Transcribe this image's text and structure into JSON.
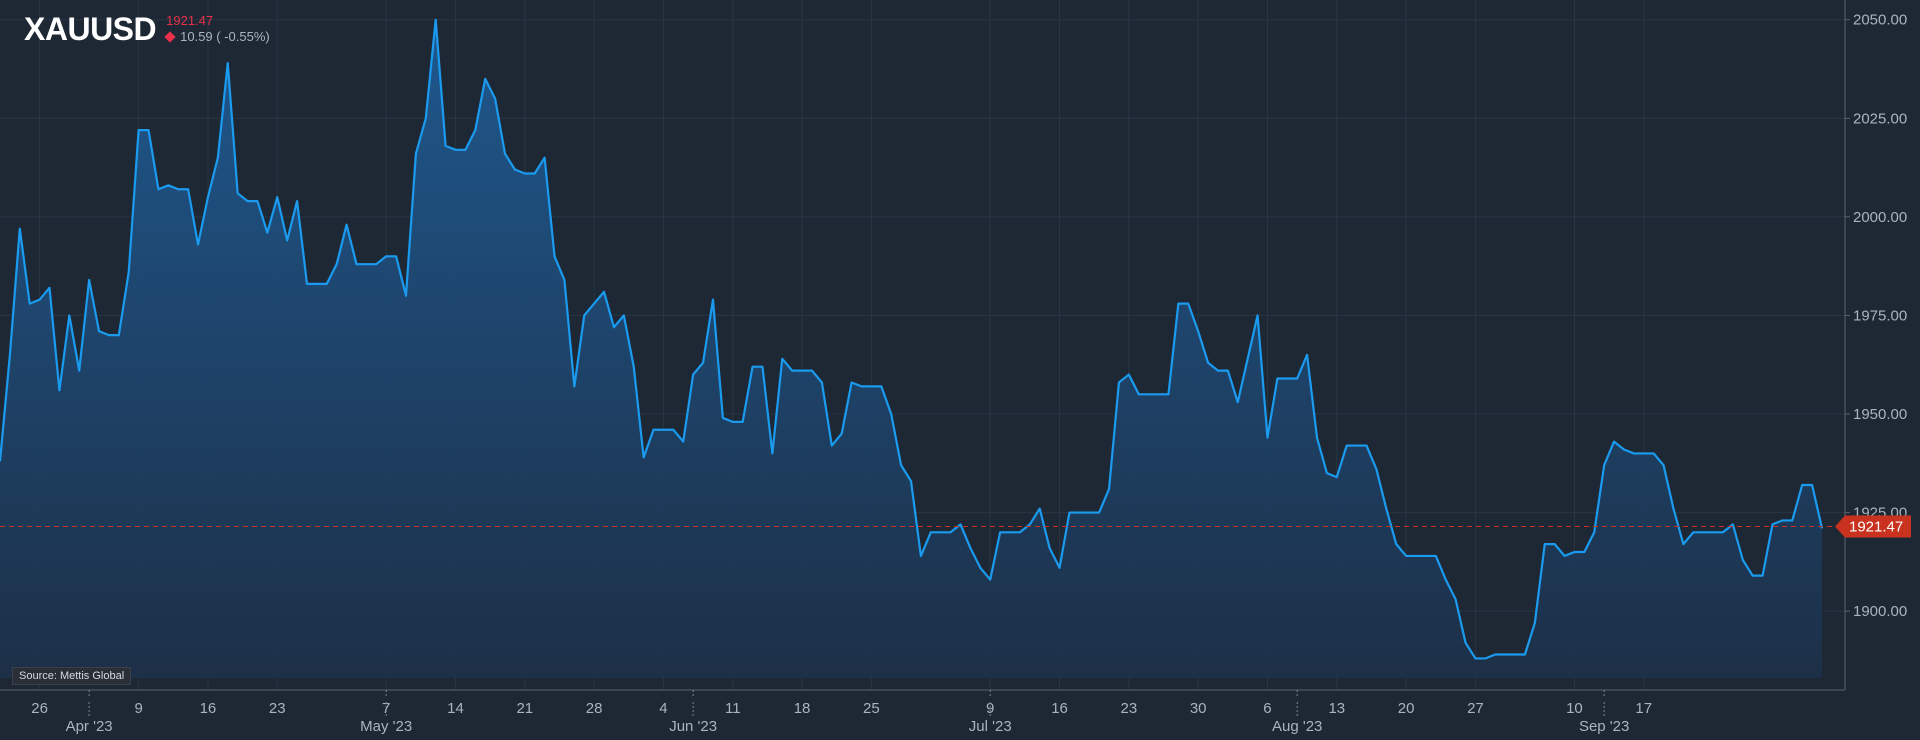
{
  "header": {
    "symbol": "XAUUSD",
    "last_price": "1921.47",
    "change": "10.59 ( -0.55%)"
  },
  "source": "Source: Mettis Global",
  "colors": {
    "background": "#1e2834",
    "line": "#1a9bf0",
    "area_top": "#1e5a92",
    "area_bottom": "#1d3048",
    "grid": "#283543",
    "price_tag": "#c8321f",
    "down": "#e8304a"
  },
  "chart_data": {
    "type": "area",
    "title": "",
    "xlabel": "",
    "ylabel": "",
    "ylim": [
      1880,
      2055
    ],
    "y_ticks": [
      {
        "value": 1900,
        "label": "1900.00"
      },
      {
        "value": 1925,
        "label": "1925.00"
      },
      {
        "value": 1950,
        "label": "1950.00"
      },
      {
        "value": 1975,
        "label": "1975.00"
      },
      {
        "value": 2000,
        "label": "2000.00"
      },
      {
        "value": 2025,
        "label": "2025.00"
      },
      {
        "value": 2050,
        "label": "2050.00"
      }
    ],
    "x_day_ticks": [
      {
        "index": 4,
        "label": "26"
      },
      {
        "index": 14,
        "label": "9"
      },
      {
        "index": 21,
        "label": "16"
      },
      {
        "index": 28,
        "label": "23"
      },
      {
        "index": 39,
        "label": "7"
      },
      {
        "index": 46,
        "label": "14"
      },
      {
        "index": 53,
        "label": "21"
      },
      {
        "index": 60,
        "label": "28"
      },
      {
        "index": 67,
        "label": "4"
      },
      {
        "index": 74,
        "label": "11"
      },
      {
        "index": 81,
        "label": "18"
      },
      {
        "index": 88,
        "label": "25"
      },
      {
        "index": 100,
        "label": "9"
      },
      {
        "index": 107,
        "label": "16"
      },
      {
        "index": 114,
        "label": "23"
      },
      {
        "index": 121,
        "label": "30"
      },
      {
        "index": 128,
        "label": "6"
      },
      {
        "index": 135,
        "label": "13"
      },
      {
        "index": 142,
        "label": "20"
      },
      {
        "index": 149,
        "label": "27"
      },
      {
        "index": 159,
        "label": "10"
      },
      {
        "index": 166,
        "label": "17"
      }
    ],
    "x_month_ticks": [
      {
        "index": 9,
        "label": "Apr '23"
      },
      {
        "index": 39,
        "label": "May '23"
      },
      {
        "index": 70,
        "label": "Jun '23"
      },
      {
        "index": 100,
        "label": "Jul '23"
      },
      {
        "index": 131,
        "label": "Aug '23"
      },
      {
        "index": 162,
        "label": "Sep '23"
      }
    ],
    "current_value": 1921.47,
    "current_label": "1921.47",
    "series": [
      {
        "values": [
          1938,
          1965,
          1997,
          1978,
          1979,
          1982,
          1956,
          1975,
          1961,
          1984,
          1971,
          1970,
          1970,
          1986,
          2022,
          2022,
          2007,
          2008,
          2007,
          2007,
          1993,
          2005,
          2015,
          2039,
          2006,
          2004,
          2004,
          1996,
          2005,
          1994,
          2004,
          1983,
          1983,
          1983,
          1988,
          1998,
          1988,
          1988,
          1988,
          1990,
          1990,
          1980,
          2016,
          2025,
          2050,
          2018,
          2017,
          2017,
          2022,
          2035,
          2030,
          2016,
          2012,
          2011,
          2011,
          2015,
          1990,
          1984,
          1957,
          1975,
          1978,
          1981,
          1972,
          1975,
          1962,
          1939,
          1946,
          1946,
          1946,
          1943,
          1960,
          1963,
          1979,
          1949,
          1948,
          1948,
          1962,
          1962,
          1940,
          1964,
          1961,
          1961,
          1961,
          1958,
          1942,
          1945,
          1958,
          1957,
          1957,
          1957,
          1950,
          1937,
          1933,
          1914,
          1920,
          1920,
          1920,
          1922,
          1916,
          1911,
          1908,
          1920,
          1920,
          1920,
          1922,
          1926,
          1916,
          1911,
          1925,
          1925,
          1925,
          1925,
          1931,
          1958,
          1960,
          1955,
          1955,
          1955,
          1955,
          1978,
          1978,
          1971,
          1963,
          1961,
          1961,
          1953,
          1964,
          1975,
          1944,
          1959,
          1959,
          1959,
          1965,
          1944,
          1935,
          1934,
          1942,
          1942,
          1942,
          1936,
          1926,
          1917,
          1914,
          1914,
          1914,
          1914,
          1908,
          1903,
          1892,
          1888,
          1888,
          1889,
          1889,
          1889,
          1889,
          1897,
          1917,
          1917,
          1914,
          1915,
          1915,
          1920,
          1937,
          1943,
          1941,
          1940,
          1940,
          1940,
          1937,
          1926,
          1917,
          1920,
          1920,
          1920,
          1920,
          1922,
          1913,
          1909,
          1909,
          1922,
          1923,
          1923,
          1932,
          1932,
          1921
        ]
      }
    ]
  }
}
